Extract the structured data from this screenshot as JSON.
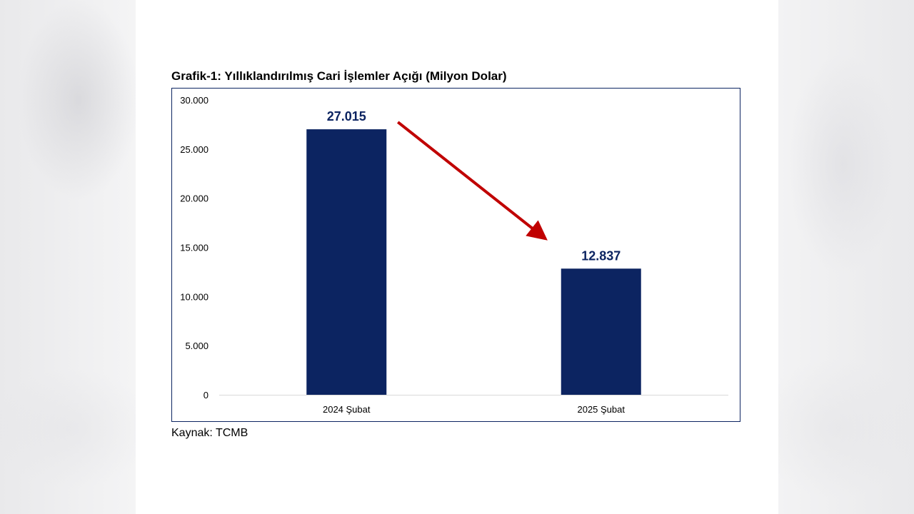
{
  "title": "Grafik-1: Yıllıklandırılmış Cari İşlemler Açığı (Milyon Dolar)",
  "source": "Kaynak: TCMB",
  "colors": {
    "bar": "#0c2461",
    "label": "#0c2461",
    "arrow": "#c00000",
    "axis_text": "#000000",
    "frame": "#0c2461"
  },
  "chart_data": {
    "type": "bar",
    "categories": [
      "2024 Şubat",
      "2025 Şubat"
    ],
    "values": [
      27015,
      12837
    ],
    "data_labels": [
      "27.015",
      "12.837"
    ],
    "yticks": [
      0,
      5000,
      10000,
      15000,
      20000,
      25000,
      30000
    ],
    "ytick_labels": [
      "0",
      "5.000",
      "10.000",
      "15.000",
      "20.000",
      "25.000",
      "30.000"
    ],
    "ylim": [
      0,
      30000
    ],
    "grid": false,
    "legend": "none",
    "annotation": "red arrow pointing downward from the 2024 Şubat bar to the 2025 Şubat bar"
  }
}
